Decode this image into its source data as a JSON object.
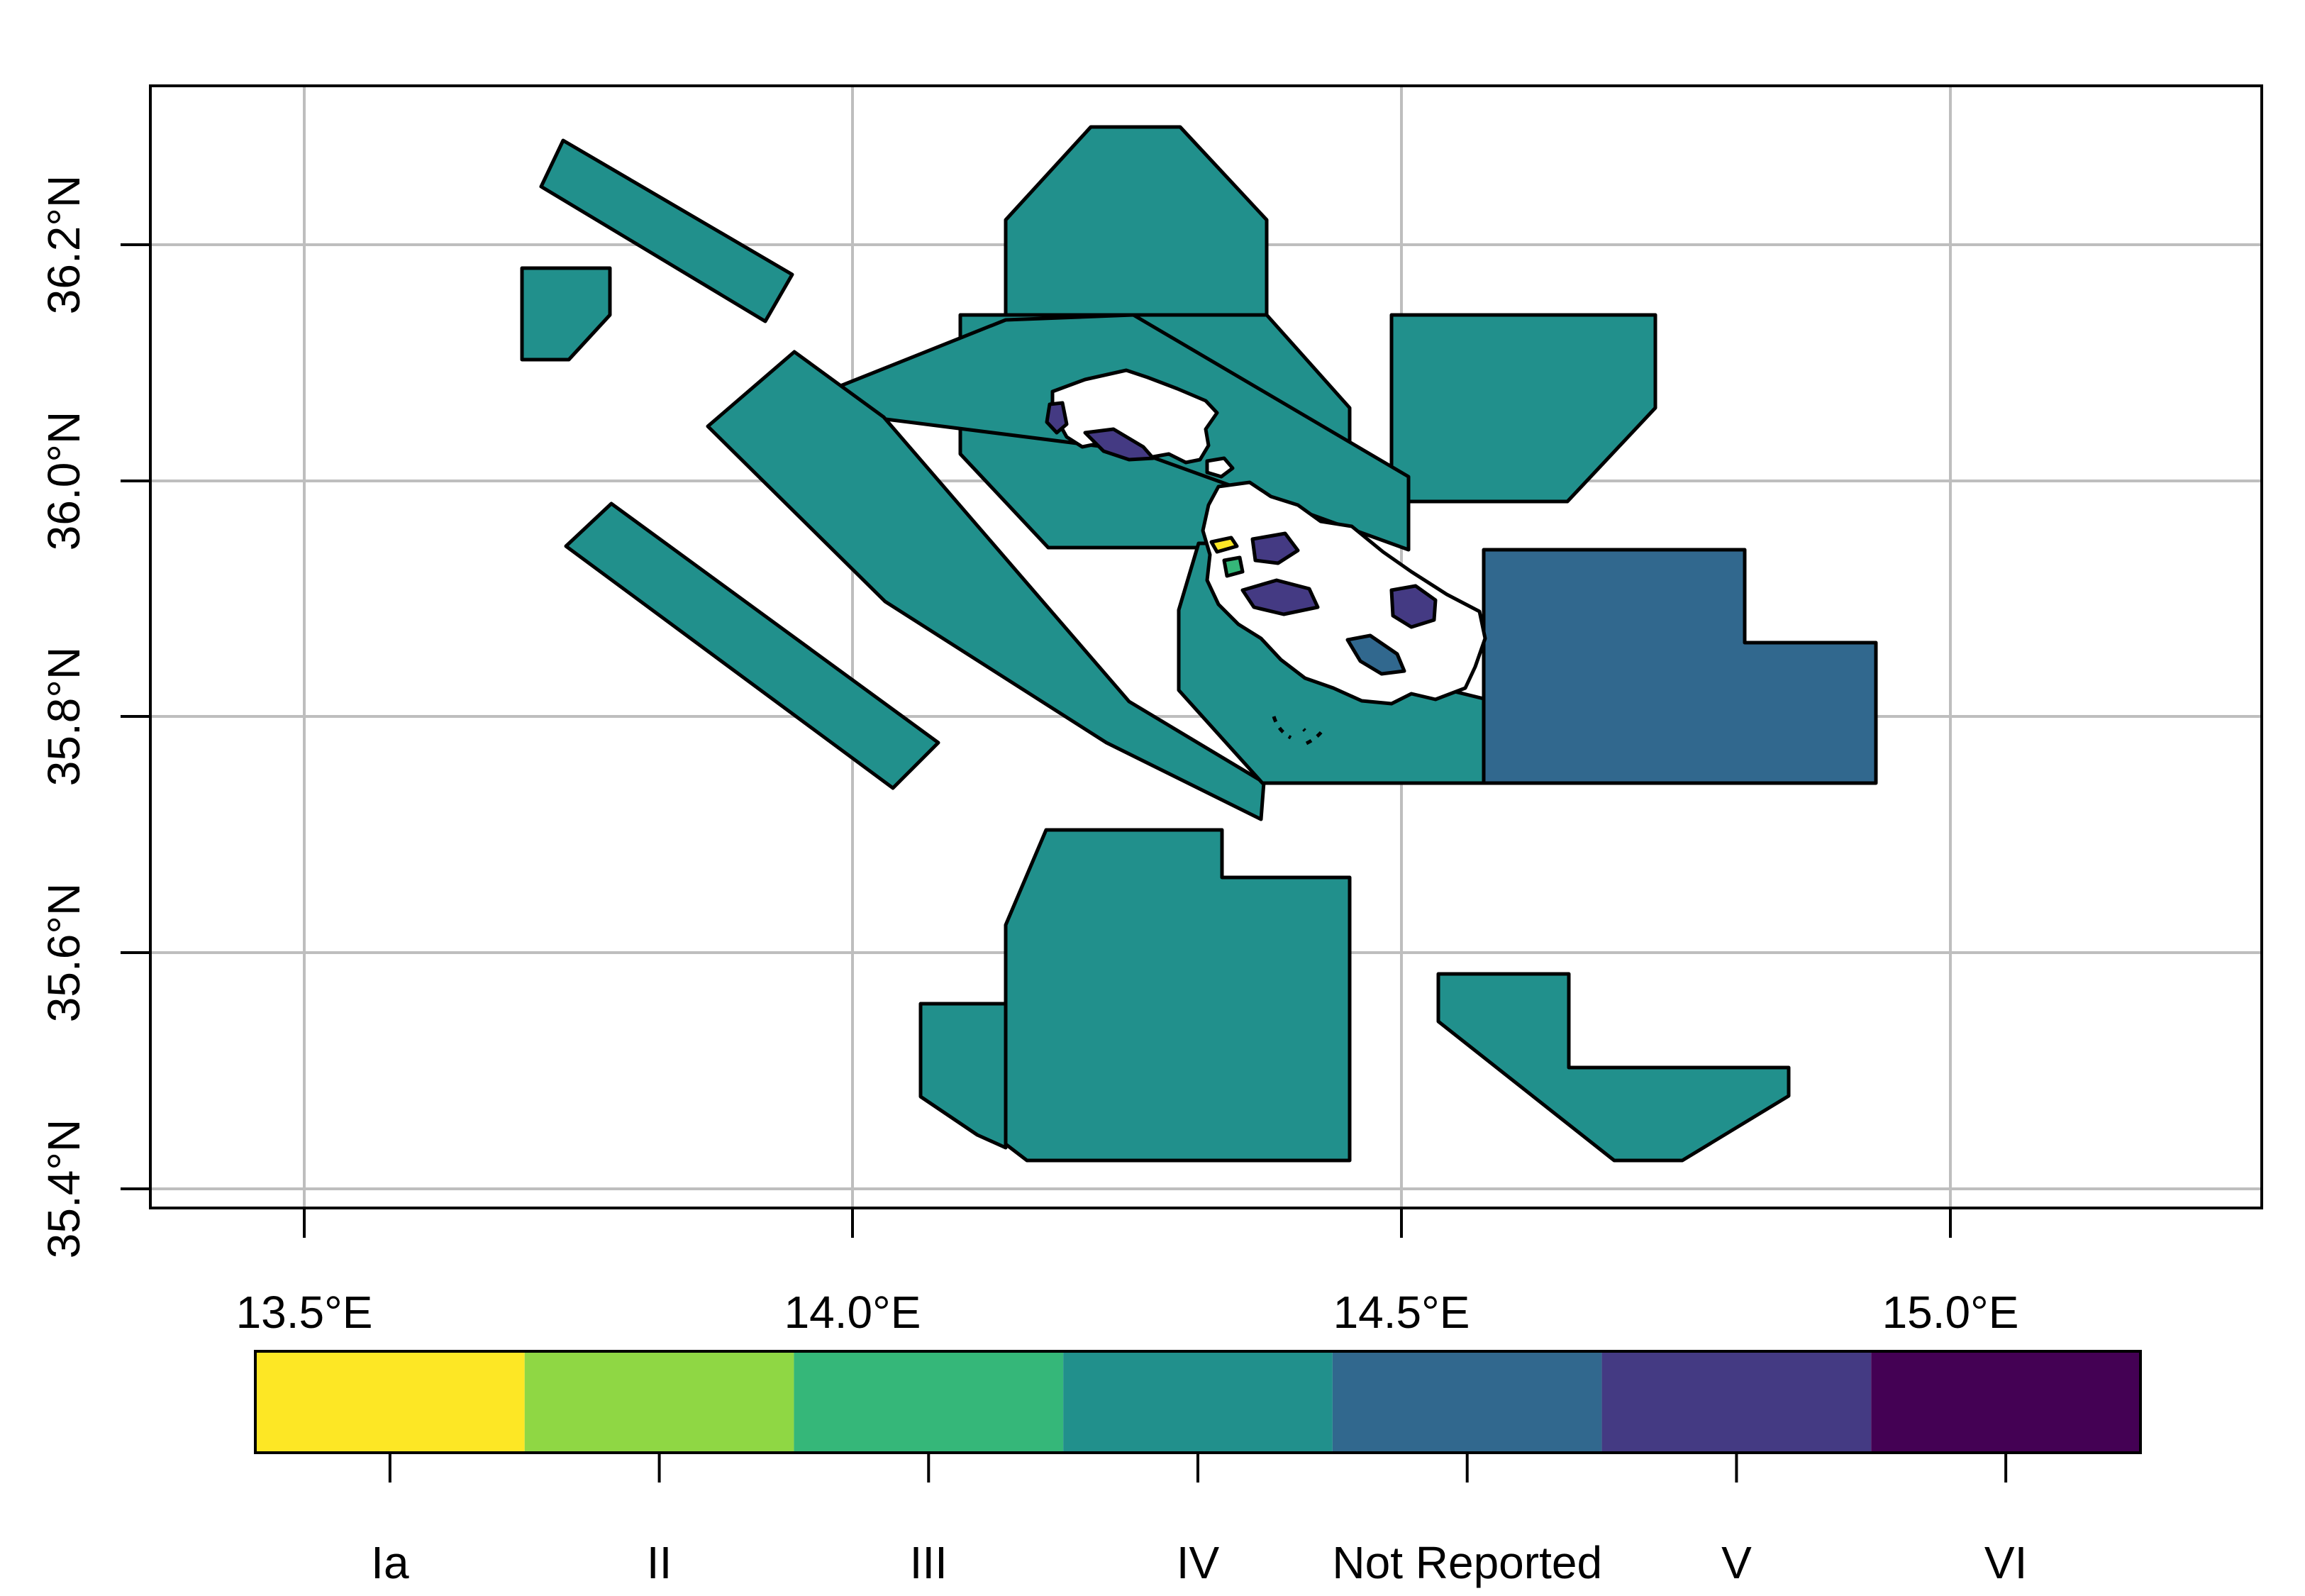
{
  "axes": {
    "x_ticks": [
      {
        "value": 13.5,
        "label": "13.5°E"
      },
      {
        "value": 14.0,
        "label": "14.0°E"
      },
      {
        "value": 14.5,
        "label": "14.5°E"
      },
      {
        "value": 15.0,
        "label": "15.0°E"
      }
    ],
    "y_ticks": [
      {
        "value": 35.4,
        "label": "35.4°N"
      },
      {
        "value": 35.6,
        "label": "35.6°N"
      },
      {
        "value": 35.8,
        "label": "35.8°N"
      },
      {
        "value": 36.0,
        "label": "36.0°N"
      },
      {
        "value": 36.2,
        "label": "36.2°N"
      }
    ]
  },
  "legend": {
    "categories": [
      "Ia",
      "II",
      "III",
      "IV",
      "Not Reported",
      "V",
      "VI"
    ],
    "colors": [
      "#FDE725",
      "#8FD744",
      "#35B779",
      "#21908C",
      "#31688E",
      "#443A83",
      "#440154"
    ]
  }
}
